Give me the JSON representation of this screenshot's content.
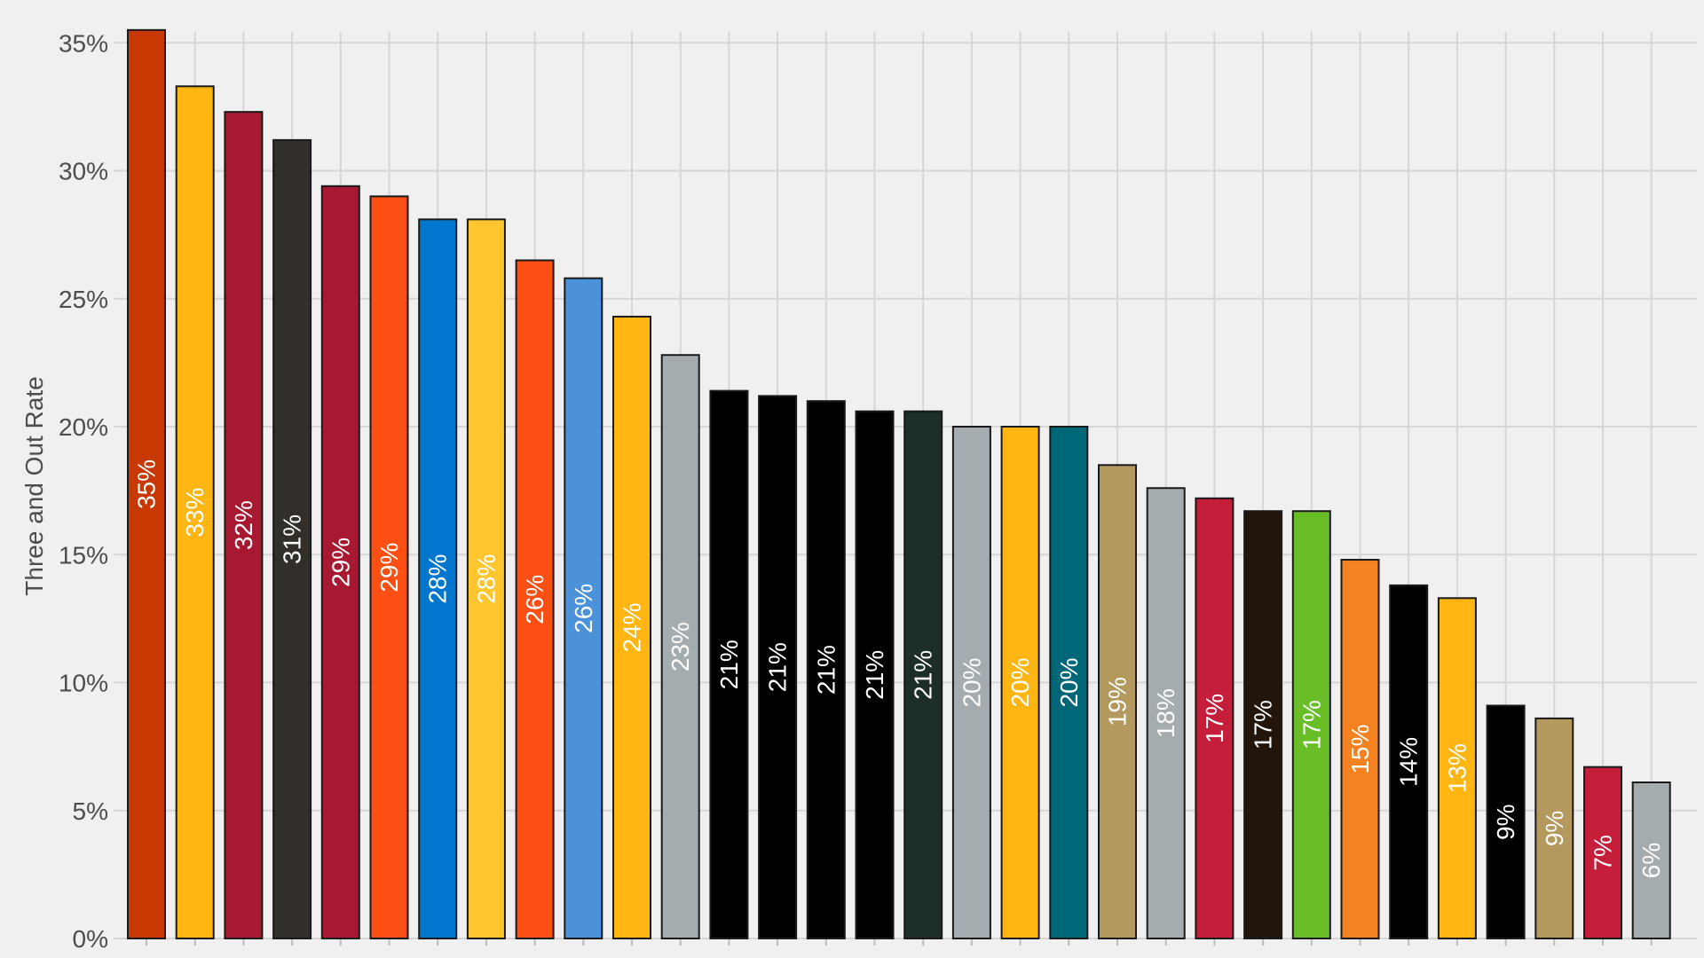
{
  "chart_data": {
    "type": "bar",
    "title": "",
    "xlabel": "",
    "ylabel": "Three and Out Rate",
    "ylim": [
      0,
      35.6
    ],
    "yticks": [
      0,
      5,
      10,
      15,
      20,
      25,
      30,
      35
    ],
    "ytick_labels": [
      "0%",
      "5%",
      "10%",
      "15%",
      "20%",
      "25%",
      "30%",
      "35%"
    ],
    "grid": true,
    "legend": "none",
    "bars": [
      {
        "value": 35.5,
        "label": "35%",
        "color": "#C83803",
        "text_color": "#FFFFFF"
      },
      {
        "value": 33.3,
        "label": "33%",
        "color": "#FFB612",
        "text_color": "#FFFFFF"
      },
      {
        "value": 32.3,
        "label": "32%",
        "color": "#A71930",
        "text_color": "#FFFFFF"
      },
      {
        "value": 31.2,
        "label": "31%",
        "color": "#322F2B",
        "text_color": "#FFFFFF"
      },
      {
        "value": 29.4,
        "label": "29%",
        "color": "#A71930",
        "text_color": "#FFFFFF"
      },
      {
        "value": 29.0,
        "label": "29%",
        "color": "#FB4F14",
        "text_color": "#FFFFFF"
      },
      {
        "value": 28.1,
        "label": "28%",
        "color": "#0076CE",
        "text_color": "#FFFFFF"
      },
      {
        "value": 28.1,
        "label": "28%",
        "color": "#FFC62F",
        "text_color": "#FFFFFF"
      },
      {
        "value": 26.5,
        "label": "26%",
        "color": "#FB4F14",
        "text_color": "#FFFFFF"
      },
      {
        "value": 25.8,
        "label": "26%",
        "color": "#4B92DB",
        "text_color": "#FFFFFF"
      },
      {
        "value": 24.3,
        "label": "24%",
        "color": "#FFB612",
        "text_color": "#FFFFFF"
      },
      {
        "value": 22.8,
        "label": "23%",
        "color": "#A5ACAF",
        "text_color": "#FFFFFF"
      },
      {
        "value": 21.4,
        "label": "21%",
        "color": "#000000",
        "text_color": "#FFFFFF"
      },
      {
        "value": 21.2,
        "label": "21%",
        "color": "#000000",
        "text_color": "#FFFFFF"
      },
      {
        "value": 21.0,
        "label": "21%",
        "color": "#000000",
        "text_color": "#FFFFFF"
      },
      {
        "value": 20.6,
        "label": "21%",
        "color": "#000000",
        "text_color": "#FFFFFF"
      },
      {
        "value": 20.6,
        "label": "21%",
        "color": "#1D2D27",
        "text_color": "#FFFFFF"
      },
      {
        "value": 20.0,
        "label": "20%",
        "color": "#A5ACAF",
        "text_color": "#FFFFFF"
      },
      {
        "value": 20.0,
        "label": "20%",
        "color": "#FFB612",
        "text_color": "#FFFFFF"
      },
      {
        "value": 20.0,
        "label": "20%",
        "color": "#006778",
        "text_color": "#FFFFFF"
      },
      {
        "value": 18.5,
        "label": "19%",
        "color": "#B3995D",
        "text_color": "#FFFFFF"
      },
      {
        "value": 17.6,
        "label": "18%",
        "color": "#A5ACAF",
        "text_color": "#FFFFFF"
      },
      {
        "value": 17.2,
        "label": "17%",
        "color": "#C41E3A",
        "text_color": "#FFFFFF"
      },
      {
        "value": 16.7,
        "label": "17%",
        "color": "#22150C",
        "text_color": "#FFFFFF"
      },
      {
        "value": 16.7,
        "label": "17%",
        "color": "#69BE28",
        "text_color": "#FFFFFF"
      },
      {
        "value": 14.8,
        "label": "15%",
        "color": "#F58220",
        "text_color": "#FFFFFF"
      },
      {
        "value": 13.8,
        "label": "14%",
        "color": "#000000",
        "text_color": "#FFFFFF"
      },
      {
        "value": 13.3,
        "label": "13%",
        "color": "#FFB612",
        "text_color": "#FFFFFF"
      },
      {
        "value": 9.1,
        "label": "9%",
        "color": "#000000",
        "text_color": "#FFFFFF"
      },
      {
        "value": 8.6,
        "label": "9%",
        "color": "#B3995D",
        "text_color": "#FFFFFF"
      },
      {
        "value": 6.7,
        "label": "7%",
        "color": "#C41E3A",
        "text_color": "#FFFFFF"
      },
      {
        "value": 6.1,
        "label": "6%",
        "color": "#A5ACAF",
        "text_color": "#FFFFFF"
      }
    ]
  }
}
